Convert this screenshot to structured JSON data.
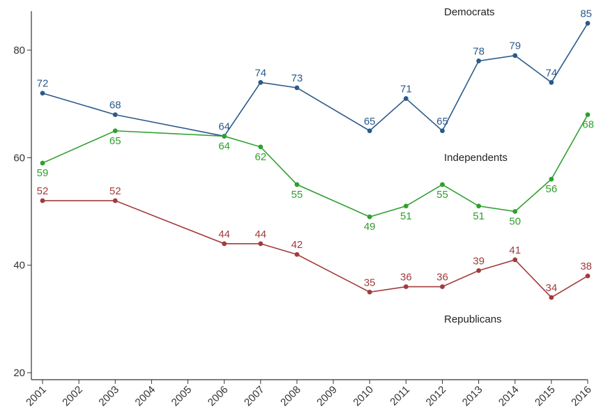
{
  "chart_data": {
    "type": "line",
    "x_ticks": [
      "2001",
      "2002",
      "2003",
      "2004",
      "2005",
      "2006",
      "2007",
      "2008",
      "2009",
      "2010",
      "2011",
      "2012",
      "2013",
      "2014",
      "2015",
      "2016"
    ],
    "y_ticks": [
      20,
      40,
      60,
      80
    ],
    "xlim": [
      2001,
      2016
    ],
    "ylim": [
      18,
      87
    ],
    "grid": false,
    "series": [
      {
        "name": "Democrats",
        "color": "#2b5a8a",
        "points": [
          {
            "x": 2001,
            "y": 72
          },
          {
            "x": 2003,
            "y": 68
          },
          {
            "x": 2006,
            "y": 64
          },
          {
            "x": 2007,
            "y": 74
          },
          {
            "x": 2008,
            "y": 73
          },
          {
            "x": 2010,
            "y": 65
          },
          {
            "x": 2011,
            "y": 71
          },
          {
            "x": 2012,
            "y": 65
          },
          {
            "x": 2013,
            "y": 78
          },
          {
            "x": 2014,
            "y": 79
          },
          {
            "x": 2015,
            "y": 74
          },
          {
            "x": 2016,
            "y": 85
          }
        ]
      },
      {
        "name": "Independents",
        "color": "#2ea02e",
        "points": [
          {
            "x": 2001,
            "y": 59
          },
          {
            "x": 2003,
            "y": 65
          },
          {
            "x": 2006,
            "y": 64
          },
          {
            "x": 2007,
            "y": 62
          },
          {
            "x": 2008,
            "y": 55
          },
          {
            "x": 2010,
            "y": 49
          },
          {
            "x": 2011,
            "y": 51
          },
          {
            "x": 2012,
            "y": 55
          },
          {
            "x": 2013,
            "y": 51
          },
          {
            "x": 2014,
            "y": 50
          },
          {
            "x": 2015,
            "y": 56
          },
          {
            "x": 2016,
            "y": 68
          }
        ]
      },
      {
        "name": "Republicans",
        "color": "#a23b3b",
        "points": [
          {
            "x": 2001,
            "y": 52
          },
          {
            "x": 2003,
            "y": 52
          },
          {
            "x": 2006,
            "y": 44
          },
          {
            "x": 2007,
            "y": 44
          },
          {
            "x": 2008,
            "y": 42
          },
          {
            "x": 2010,
            "y": 35
          },
          {
            "x": 2011,
            "y": 36
          },
          {
            "x": 2012,
            "y": 36
          },
          {
            "x": 2013,
            "y": 39
          },
          {
            "x": 2014,
            "y": 41
          },
          {
            "x": 2015,
            "y": 34
          },
          {
            "x": 2016,
            "y": 38
          }
        ]
      }
    ]
  }
}
